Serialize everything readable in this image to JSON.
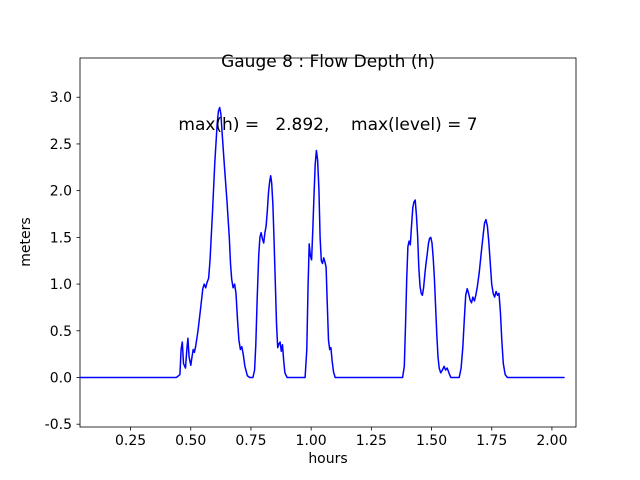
{
  "chart_data": {
    "type": "line",
    "title": "Gauge 8 : Flow Depth (h)",
    "subtitle": "max(h) =   2.892,    max(level) = 7",
    "xlabel": "hours",
    "ylabel": "meters",
    "xlim": [
      0.04,
      2.1
    ],
    "ylim": [
      -0.53,
      3.42
    ],
    "xticks": [
      0.25,
      0.5,
      0.75,
      1.0,
      1.25,
      1.5,
      1.75,
      2.0
    ],
    "xtick_labels": [
      "0.25",
      "0.50",
      "0.75",
      "1.00",
      "1.25",
      "1.50",
      "1.75",
      "2.00"
    ],
    "yticks": [
      -0.5,
      0.0,
      0.5,
      1.0,
      1.5,
      2.0,
      2.5,
      3.0
    ],
    "ytick_labels": [
      "-0.5",
      "0.0",
      "0.5",
      "1.0",
      "1.5",
      "2.0",
      "2.5",
      "3.0"
    ],
    "grid": false,
    "legend": null,
    "line_color": "#0000ff",
    "line_width": 1.5,
    "max_h": 2.892,
    "max_level": 7,
    "points": [
      [
        0.04,
        0
      ],
      [
        0.2,
        0
      ],
      [
        0.35,
        0
      ],
      [
        0.44,
        0
      ],
      [
        0.455,
        0.03
      ],
      [
        0.46,
        0.3
      ],
      [
        0.465,
        0.38
      ],
      [
        0.47,
        0.15
      ],
      [
        0.478,
        0.1
      ],
      [
        0.483,
        0.28
      ],
      [
        0.488,
        0.42
      ],
      [
        0.493,
        0.22
      ],
      [
        0.5,
        0.13
      ],
      [
        0.505,
        0.22
      ],
      [
        0.51,
        0.3
      ],
      [
        0.515,
        0.27
      ],
      [
        0.52,
        0.33
      ],
      [
        0.53,
        0.5
      ],
      [
        0.54,
        0.72
      ],
      [
        0.55,
        0.95
      ],
      [
        0.556,
        1.0
      ],
      [
        0.562,
        0.96
      ],
      [
        0.568,
        1.02
      ],
      [
        0.574,
        1.06
      ],
      [
        0.58,
        1.25
      ],
      [
        0.59,
        1.75
      ],
      [
        0.6,
        2.3
      ],
      [
        0.61,
        2.72
      ],
      [
        0.615,
        2.85
      ],
      [
        0.62,
        2.89
      ],
      [
        0.625,
        2.82
      ],
      [
        0.63,
        2.62
      ],
      [
        0.64,
        2.25
      ],
      [
        0.65,
        1.9
      ],
      [
        0.66,
        1.5
      ],
      [
        0.665,
        1.22
      ],
      [
        0.67,
        1.05
      ],
      [
        0.676,
        0.96
      ],
      [
        0.682,
        1.0
      ],
      [
        0.688,
        0.9
      ],
      [
        0.694,
        0.62
      ],
      [
        0.7,
        0.4
      ],
      [
        0.706,
        0.3
      ],
      [
        0.712,
        0.33
      ],
      [
        0.718,
        0.25
      ],
      [
        0.725,
        0.12
      ],
      [
        0.735,
        0.02
      ],
      [
        0.745,
        0.0
      ],
      [
        0.758,
        0.0
      ],
      [
        0.765,
        0.08
      ],
      [
        0.77,
        0.35
      ],
      [
        0.776,
        0.85
      ],
      [
        0.782,
        1.3
      ],
      [
        0.787,
        1.5
      ],
      [
        0.792,
        1.55
      ],
      [
        0.798,
        1.48
      ],
      [
        0.803,
        1.44
      ],
      [
        0.808,
        1.55
      ],
      [
        0.813,
        1.62
      ],
      [
        0.818,
        1.78
      ],
      [
        0.823,
        1.98
      ],
      [
        0.828,
        2.1
      ],
      [
        0.832,
        2.16
      ],
      [
        0.836,
        2.08
      ],
      [
        0.841,
        1.85
      ],
      [
        0.846,
        1.45
      ],
      [
        0.851,
        1.02
      ],
      [
        0.856,
        0.58
      ],
      [
        0.861,
        0.32
      ],
      [
        0.866,
        0.36
      ],
      [
        0.871,
        0.38
      ],
      [
        0.876,
        0.28
      ],
      [
        0.881,
        0.35
      ],
      [
        0.886,
        0.18
      ],
      [
        0.891,
        0.05
      ],
      [
        0.9,
        0.0
      ],
      [
        0.95,
        0.0
      ],
      [
        0.975,
        0.0
      ],
      [
        0.982,
        0.3
      ],
      [
        0.987,
        0.95
      ],
      [
        0.992,
        1.43
      ],
      [
        0.997,
        1.3
      ],
      [
        1.002,
        1.26
      ],
      [
        1.007,
        1.58
      ],
      [
        1.012,
        1.95
      ],
      [
        1.017,
        2.28
      ],
      [
        1.022,
        2.43
      ],
      [
        1.027,
        2.33
      ],
      [
        1.032,
        2.02
      ],
      [
        1.037,
        1.5
      ],
      [
        1.042,
        1.25
      ],
      [
        1.047,
        1.22
      ],
      [
        1.052,
        1.28
      ],
      [
        1.057,
        1.24
      ],
      [
        1.062,
        1.18
      ],
      [
        1.067,
        0.78
      ],
      [
        1.072,
        0.4
      ],
      [
        1.077,
        0.3
      ],
      [
        1.082,
        0.32
      ],
      [
        1.087,
        0.18
      ],
      [
        1.093,
        0.06
      ],
      [
        1.1,
        0.0
      ],
      [
        1.2,
        0.0
      ],
      [
        1.3,
        0.0
      ],
      [
        1.38,
        0.0
      ],
      [
        1.387,
        0.12
      ],
      [
        1.392,
        0.55
      ],
      [
        1.397,
        1.05
      ],
      [
        1.402,
        1.4
      ],
      [
        1.407,
        1.46
      ],
      [
        1.412,
        1.42
      ],
      [
        1.417,
        1.62
      ],
      [
        1.422,
        1.82
      ],
      [
        1.427,
        1.88
      ],
      [
        1.432,
        1.9
      ],
      [
        1.437,
        1.74
      ],
      [
        1.442,
        1.52
      ],
      [
        1.447,
        1.18
      ],
      [
        1.452,
        0.98
      ],
      [
        1.457,
        0.9
      ],
      [
        1.462,
        0.88
      ],
      [
        1.467,
        0.96
      ],
      [
        1.472,
        1.1
      ],
      [
        1.477,
        1.22
      ],
      [
        1.482,
        1.32
      ],
      [
        1.487,
        1.43
      ],
      [
        1.492,
        1.49
      ],
      [
        1.497,
        1.5
      ],
      [
        1.502,
        1.44
      ],
      [
        1.507,
        1.28
      ],
      [
        1.512,
        1.06
      ],
      [
        1.517,
        0.76
      ],
      [
        1.522,
        0.46
      ],
      [
        1.527,
        0.22
      ],
      [
        1.532,
        0.1
      ],
      [
        1.538,
        0.05
      ],
      [
        1.545,
        0.08
      ],
      [
        1.552,
        0.12
      ],
      [
        1.558,
        0.08
      ],
      [
        1.565,
        0.1
      ],
      [
        1.572,
        0.05
      ],
      [
        1.58,
        0.0
      ],
      [
        1.6,
        0.0
      ],
      [
        1.615,
        0.0
      ],
      [
        1.623,
        0.1
      ],
      [
        1.63,
        0.32
      ],
      [
        1.636,
        0.62
      ],
      [
        1.642,
        0.88
      ],
      [
        1.648,
        0.95
      ],
      [
        1.654,
        0.9
      ],
      [
        1.66,
        0.83
      ],
      [
        1.666,
        0.8
      ],
      [
        1.672,
        0.86
      ],
      [
        1.678,
        0.82
      ],
      [
        1.684,
        0.88
      ],
      [
        1.69,
        0.97
      ],
      [
        1.698,
        1.12
      ],
      [
        1.706,
        1.32
      ],
      [
        1.714,
        1.52
      ],
      [
        1.72,
        1.65
      ],
      [
        1.726,
        1.69
      ],
      [
        1.732,
        1.62
      ],
      [
        1.738,
        1.45
      ],
      [
        1.744,
        1.22
      ],
      [
        1.75,
        1.0
      ],
      [
        1.756,
        0.9
      ],
      [
        1.762,
        0.86
      ],
      [
        1.768,
        0.92
      ],
      [
        1.774,
        0.88
      ],
      [
        1.78,
        0.9
      ],
      [
        1.786,
        0.7
      ],
      [
        1.792,
        0.4
      ],
      [
        1.798,
        0.15
      ],
      [
        1.806,
        0.03
      ],
      [
        1.815,
        0.0
      ],
      [
        1.9,
        0.0
      ],
      [
        2.0,
        0.0
      ],
      [
        2.05,
        0.0
      ]
    ]
  }
}
